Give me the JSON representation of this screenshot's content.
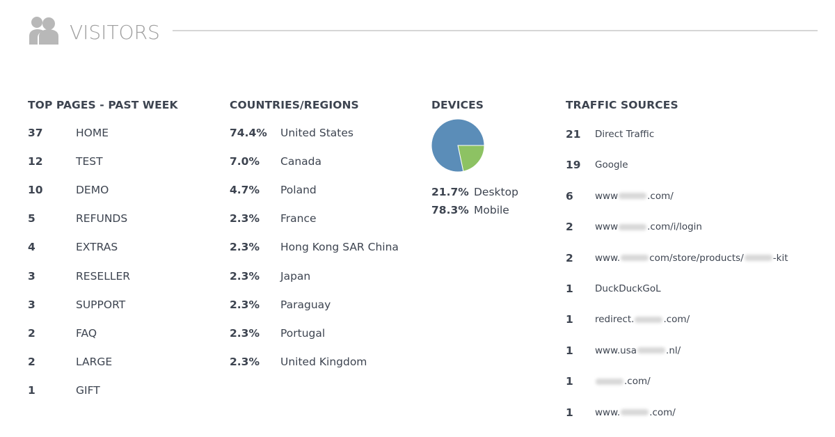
{
  "header": {
    "title": "VISITORS"
  },
  "top_pages": {
    "title": "TOP PAGES - PAST WEEK",
    "rows": [
      {
        "count": 37,
        "label": "HOME"
      },
      {
        "count": 12,
        "label": "TEST"
      },
      {
        "count": 10,
        "label": "DEMO"
      },
      {
        "count": 5,
        "label": "REFUNDS"
      },
      {
        "count": 4,
        "label": "EXTRAS"
      },
      {
        "count": 3,
        "label": "RESELLER"
      },
      {
        "count": 3,
        "label": "SUPPORT"
      },
      {
        "count": 2,
        "label": "FAQ"
      },
      {
        "count": 2,
        "label": "LARGE"
      },
      {
        "count": 1,
        "label": "GIFT"
      }
    ]
  },
  "countries": {
    "title": "COUNTRIES/REGIONS",
    "rows": [
      {
        "share": "74.4%",
        "label": "United States"
      },
      {
        "share": "7.0%",
        "label": "Canada"
      },
      {
        "share": "4.7%",
        "label": "Poland"
      },
      {
        "share": "2.3%",
        "label": "France"
      },
      {
        "share": "2.3%",
        "label": "Hong Kong SAR China"
      },
      {
        "share": "2.3%",
        "label": "Japan"
      },
      {
        "share": "2.3%",
        "label": "Paraguay"
      },
      {
        "share": "2.3%",
        "label": "Portugal"
      },
      {
        "share": "2.3%",
        "label": "United Kingdom"
      }
    ]
  },
  "devices": {
    "title": "DEVICES",
    "items": [
      {
        "label": "Desktop",
        "value": 21.7,
        "value_label": "21.7%",
        "color": "#8dc263"
      },
      {
        "label": "Mobile",
        "value": 78.3,
        "value_label": "78.3%",
        "color": "#5b8db8"
      }
    ]
  },
  "traffic": {
    "title": "TRAFFIC SOURCES",
    "rows": [
      {
        "count": 21,
        "parts": [
          "Direct Traffic"
        ]
      },
      {
        "count": 19,
        "parts": [
          "Google"
        ]
      },
      {
        "count": 6,
        "parts": [
          "www",
          null,
          ".com/"
        ]
      },
      {
        "count": 2,
        "parts": [
          "www",
          null,
          ".com/i/login"
        ]
      },
      {
        "count": 2,
        "parts": [
          "www.",
          null,
          "com/store/products/",
          null,
          "-kit"
        ]
      },
      {
        "count": 1,
        "parts": [
          "DuckDuckGoL"
        ]
      },
      {
        "count": 1,
        "parts": [
          "redirect.",
          null,
          ".com/"
        ]
      },
      {
        "count": 1,
        "parts": [
          "www.usa",
          null,
          ".nl/"
        ]
      },
      {
        "count": 1,
        "parts": [
          null,
          ".com/"
        ]
      },
      {
        "count": 1,
        "parts": [
          "www.",
          null,
          ".com/"
        ]
      }
    ]
  }
}
